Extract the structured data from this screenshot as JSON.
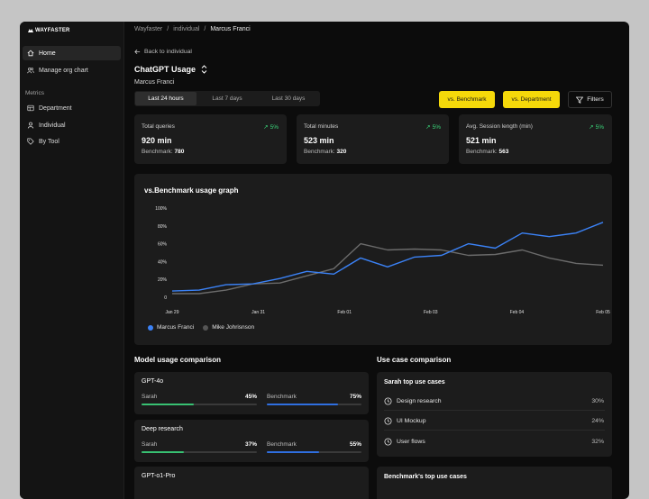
{
  "app": {
    "logo": "WAYFASTER"
  },
  "sidebar": {
    "items": [
      {
        "label": "Home",
        "icon": "home-icon",
        "active": true
      },
      {
        "label": "Manage org chart",
        "icon": "users-icon",
        "active": false
      }
    ],
    "section_label": "Metrics",
    "metric_items": [
      {
        "label": "Department",
        "icon": "department-icon"
      },
      {
        "label": "Individual",
        "icon": "person-icon"
      },
      {
        "label": "By Tool",
        "icon": "tag-icon"
      }
    ]
  },
  "breadcrumb": [
    "Wayfaster",
    "individual",
    "Marcus Franci"
  ],
  "header": {
    "back_label": "Back to individual",
    "title": "ChatGPT Usage",
    "subtitle": "Marcus Franci"
  },
  "time_ranges": {
    "options": [
      "Last 24 hours",
      "Last 7 days",
      "Last 30 days"
    ],
    "selected": "Last 24 hours"
  },
  "compare_buttons": {
    "benchmark": "vs. Benchmark",
    "department": "vs. Department",
    "filters": "Filters"
  },
  "stats": [
    {
      "title": "Total queries",
      "trend": "5%",
      "value": "920 min",
      "bench_label": "Benchmark:",
      "bench_value": "780"
    },
    {
      "title": "Total minutes",
      "trend": "5%",
      "value": "523 min",
      "bench_label": "Benchmark:",
      "bench_value": "320"
    },
    {
      "title": "Avg. Session length (min)",
      "trend": "5%",
      "value": "521 min",
      "bench_label": "Benchmark:",
      "bench_value": "563"
    }
  ],
  "chart_data": {
    "type": "line",
    "title": "vs.Benchmark usage graph",
    "xlabel": "",
    "ylabel": "",
    "ylim": [
      0,
      100
    ],
    "y_ticks": [
      "0",
      "20%",
      "40%",
      "60%",
      "80%",
      "100%"
    ],
    "x_ticks": [
      "Jan 29",
      "Jan 31",
      "Feb 01",
      "Feb 03",
      "Feb 04",
      "Feb 05"
    ],
    "grid": false,
    "legend": "bottom-left",
    "series": [
      {
        "name": "Marcus Franci",
        "color": "#3b82f6",
        "values": [
          7,
          8,
          14,
          15,
          21,
          29,
          26,
          44,
          34,
          45,
          47,
          60,
          55,
          72,
          68,
          72,
          84
        ]
      },
      {
        "name": "Mike Johrisnson",
        "color": "#6b6b6b",
        "values": [
          4,
          4,
          8,
          15,
          16,
          24,
          32,
          60,
          53,
          54,
          53,
          47,
          48,
          53,
          44,
          38,
          36
        ]
      }
    ]
  },
  "model_section": {
    "title": "Model usage comparison",
    "models": [
      {
        "name": "GPT-4o",
        "user_label": "Sarah",
        "user_pct": "45%",
        "user_val": 0.45,
        "bench_label": "Benchmark",
        "bench_pct": "75%",
        "bench_val": 0.75
      },
      {
        "name": "Deep research",
        "user_label": "Sarah",
        "user_pct": "37%",
        "user_val": 0.37,
        "bench_label": "Benchmark",
        "bench_pct": "55%",
        "bench_val": 0.55
      },
      {
        "name": "GPT-o1-Pro"
      }
    ],
    "colors": {
      "user": "#38c172",
      "bench": "#2f6fe0"
    }
  },
  "usecase_section": {
    "title": "Use case comparison",
    "user_card_title": "Sarah top use cases",
    "user_cases": [
      {
        "label": "Design research",
        "pct": "30%",
        "icon": "clock-icon"
      },
      {
        "label": "UI Mockup",
        "pct": "24%",
        "icon": "clock-icon"
      },
      {
        "label": "User flows",
        "pct": "32%",
        "icon": "clock-icon"
      }
    ],
    "bench_card_title": "Benchmark's top use cases"
  }
}
